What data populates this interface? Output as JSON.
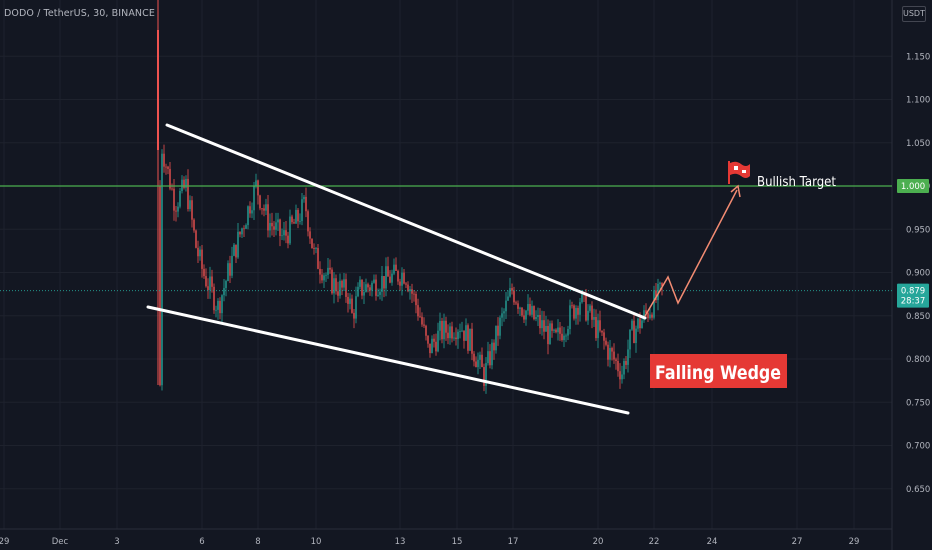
{
  "header": {
    "title": "DODO / TetherUS, 30, BINANCE",
    "currency": "USDT"
  },
  "chart_data": {
    "type": "candlestick",
    "symbol": "DODO / TetherUS",
    "interval": "30",
    "exchange": "BINANCE",
    "x_ticks": [
      "29",
      "Dec",
      "3",
      "6",
      "8",
      "10",
      "13",
      "15",
      "17",
      "20",
      "22",
      "24",
      "27",
      "29"
    ],
    "y_ticks": [
      "0.650",
      "0.700",
      "0.750",
      "0.800",
      "0.850",
      "0.900",
      "0.950",
      "1.000",
      "1.050",
      "1.100",
      "1.150"
    ],
    "ylim": [
      0.62,
      1.2
    ],
    "price_line": {
      "value": 1.0,
      "label": "1.000",
      "color": "#4caf50"
    },
    "last_price": {
      "value": 0.879,
      "label": "0.879",
      "countdown": "28:37",
      "color": "#26a69a"
    },
    "colors": {
      "up": "#26a69a",
      "down": "#ef5350",
      "background": "#131722",
      "grid": "#1e222d"
    },
    "price_path": [
      [
        "Dec 4",
        0.85
      ],
      [
        "Dec 4",
        1.2
      ],
      [
        "Dec 4",
        0.77
      ],
      [
        "Dec 4",
        1.05
      ],
      [
        "Dec 5",
        0.98
      ],
      [
        "Dec 5",
        1.0
      ],
      [
        "Dec 5",
        0.93
      ],
      [
        "Dec 6",
        0.9
      ],
      [
        "Dec 6",
        0.86
      ],
      [
        "Dec 7",
        0.93
      ],
      [
        "Dec 7",
        0.98
      ],
      [
        "Dec 8",
        1.0
      ],
      [
        "Dec 8",
        0.96
      ],
      [
        "Dec 9",
        0.94
      ],
      [
        "Dec 9",
        0.96
      ],
      [
        "Dec 10",
        0.98
      ],
      [
        "Dec 10",
        0.92
      ],
      [
        "Dec 11",
        0.89
      ],
      [
        "Dec 12",
        0.875
      ],
      [
        "Dec 12",
        0.85
      ],
      [
        "Dec 12",
        0.88
      ],
      [
        "Dec 13",
        0.89
      ],
      [
        "Dec 13",
        0.9
      ],
      [
        "Dec 14",
        0.85
      ],
      [
        "Dec 14",
        0.81
      ],
      [
        "Dec 14",
        0.83
      ],
      [
        "Dec 15",
        0.84
      ],
      [
        "Dec 15",
        0.82
      ],
      [
        "Dec 16",
        0.78
      ],
      [
        "Dec 16",
        0.84
      ],
      [
        "Dec 17",
        0.88
      ],
      [
        "Dec 17",
        0.86
      ],
      [
        "Dec 18",
        0.84
      ],
      [
        "Dec 18",
        0.82
      ],
      [
        "Dec 19",
        0.85
      ],
      [
        "Dec 19",
        0.87
      ],
      [
        "Dec 20",
        0.845
      ],
      [
        "Dec 20",
        0.81
      ],
      [
        "Dec 21",
        0.785
      ],
      [
        "Dec 21",
        0.83
      ],
      [
        "Dec 22",
        0.845
      ],
      [
        "Dec 22",
        0.879
      ]
    ],
    "annotations": [
      {
        "name": "wedge-upper-line",
        "from": [
          "Dec 4",
          1.07
        ],
        "to": [
          "Dec 22",
          0.84
        ],
        "color": "#ffffff"
      },
      {
        "name": "wedge-lower-line",
        "from": [
          "Dec 3",
          0.86
        ],
        "to": [
          "Dec 21",
          0.74
        ],
        "color": "#ffffff"
      },
      {
        "name": "projection-path",
        "points": [
          [
            "Dec 22",
            0.853
          ],
          [
            "Dec 22",
            0.897
          ],
          [
            "Dec 22",
            0.858
          ],
          [
            "Dec 24",
            0.99
          ]
        ],
        "color": "#f28b72"
      }
    ],
    "labels": [
      {
        "text": "Falling Wedge",
        "background": "#e53935",
        "color": "#ffffff"
      },
      {
        "text": "Bullish Target",
        "color": "#ffffff",
        "icon": "red-flag-icon"
      }
    ]
  }
}
